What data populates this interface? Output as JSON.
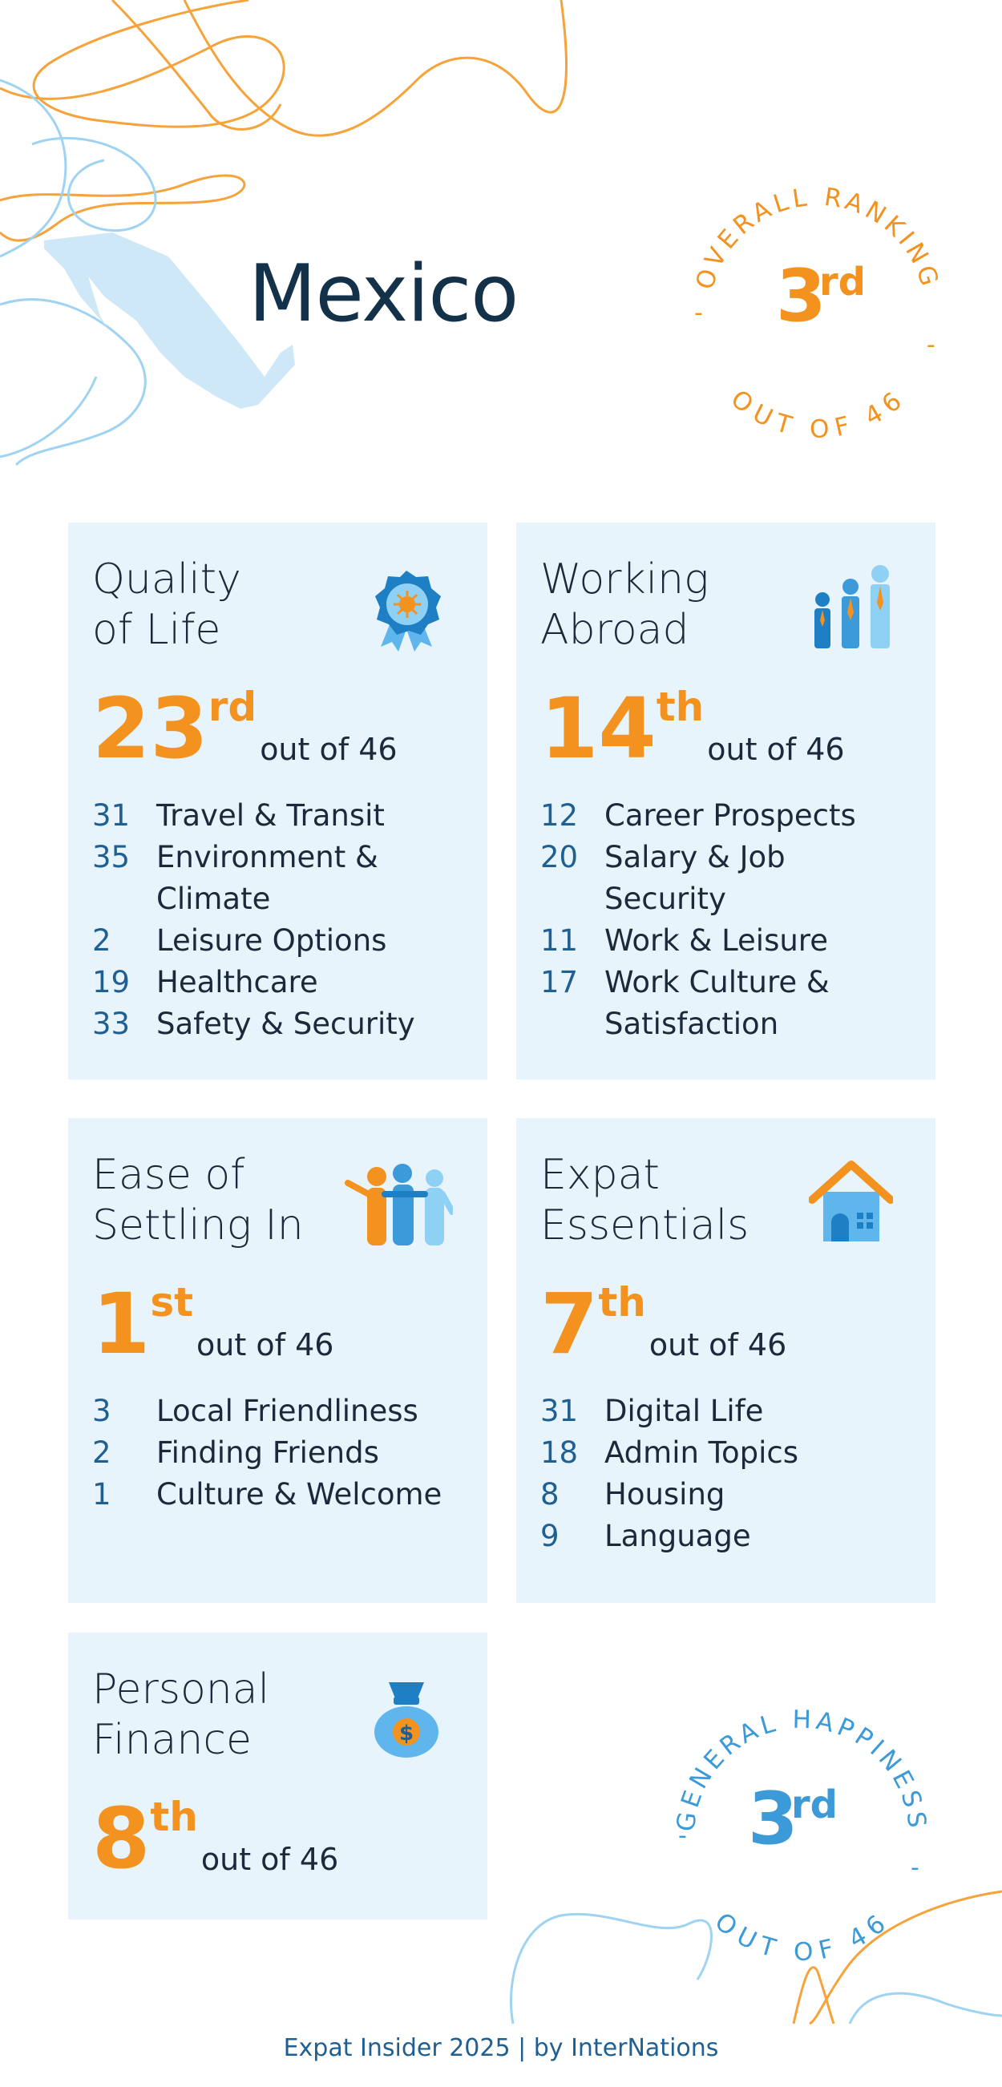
{
  "header": {
    "country": "Mexico"
  },
  "overall_badge": {
    "top": "OVERALL RANKING",
    "bottom": "OUT OF 46",
    "rank": "3",
    "suffix": "rd"
  },
  "happiness_badge": {
    "top": "GENERAL HAPPINESS",
    "bottom": "OUT OF 46",
    "rank": "3",
    "suffix": "rd"
  },
  "cards": [
    {
      "title": "Quality\nof Life",
      "icon": "award-badge-icon",
      "rank": "23",
      "suffix": "rd",
      "out_of": "out of 46",
      "items": [
        {
          "n": "31",
          "label": "Travel & Transit"
        },
        {
          "n": "35",
          "label": "Environment & Climate"
        },
        {
          "n": "2",
          "label": "Leisure Options"
        },
        {
          "n": "19",
          "label": "Healthcare"
        },
        {
          "n": "33",
          "label": "Safety & Security"
        }
      ]
    },
    {
      "title": "Working\nAbroad",
      "icon": "business-people-icon",
      "rank": "14",
      "suffix": "th",
      "out_of": "out of 46",
      "items": [
        {
          "n": "12",
          "label": "Career Prospects"
        },
        {
          "n": "20",
          "label": "Salary & Job Security"
        },
        {
          "n": "11",
          "label": "Work & Leisure"
        },
        {
          "n": "17",
          "label": "Work Culture & Satisfaction"
        }
      ]
    },
    {
      "title": "Ease of\nSettling In",
      "icon": "friends-group-icon",
      "rank": "1",
      "suffix": "st",
      "out_of": "out of 46",
      "items": [
        {
          "n": "3",
          "label": "Local Friendliness"
        },
        {
          "n": "2",
          "label": "Finding Friends"
        },
        {
          "n": "1",
          "label": "Culture & Welcome"
        }
      ]
    },
    {
      "title": "Expat\nEssentials",
      "icon": "house-icon",
      "rank": "7",
      "suffix": "th",
      "out_of": "out of 46",
      "items": [
        {
          "n": "31",
          "label": "Digital Life"
        },
        {
          "n": "18",
          "label": "Admin Topics"
        },
        {
          "n": "8",
          "label": "Housing"
        },
        {
          "n": "9",
          "label": "Language"
        }
      ]
    },
    {
      "title": "Personal\nFinance",
      "icon": "money-bag-icon",
      "rank": "8",
      "suffix": "th",
      "out_of": "out of 46",
      "items": []
    }
  ],
  "footer": {
    "text": "Expat Insider 2025  |  by InterNations"
  },
  "colors": {
    "accent": "#f3921f",
    "navy": "#13324a",
    "blue": "#1f5f92",
    "light_blue": "#8fcbf0",
    "card_bg": "#e8f4fc"
  }
}
